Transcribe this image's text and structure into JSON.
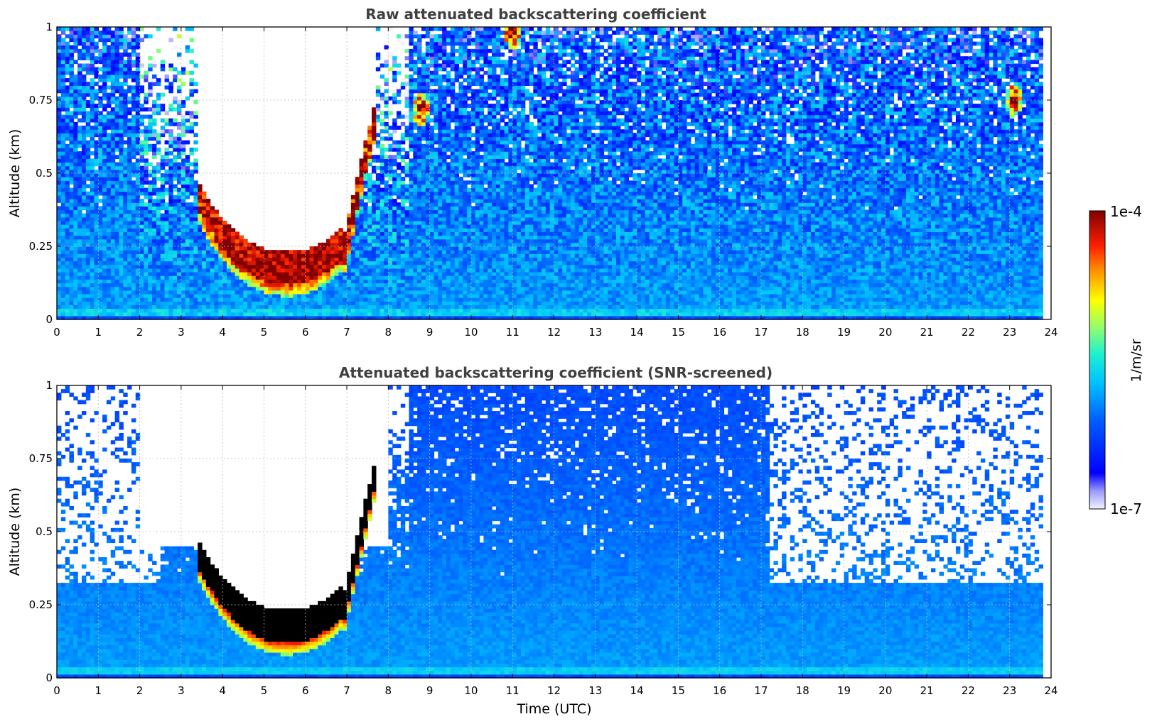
{
  "chart_data": [
    {
      "type": "heatmap",
      "title": "Raw attenuated backscattering coefficient",
      "xlabel": "",
      "ylabel": "Altitude (km)",
      "xlim": [
        0,
        24
      ],
      "ylim": [
        0,
        1
      ],
      "xticks": [
        "0",
        "1",
        "2",
        "3",
        "4",
        "5",
        "6",
        "7",
        "8",
        "9",
        "10",
        "11",
        "12",
        "13",
        "14",
        "15",
        "16",
        "17",
        "18",
        "19",
        "20",
        "21",
        "22",
        "23",
        "24"
      ],
      "yticks": [
        "0",
        "0.25",
        "0.5",
        "0.75",
        "1"
      ],
      "grid": true,
      "colorscale": "jet",
      "color_range": [
        1e-07,
        0.0001
      ],
      "features": {
        "cloud_layer": {
          "start_h": 3.4,
          "end_h": 7.7,
          "base_km_min": 0.12,
          "base_km_max": 0.38
        },
        "upper_features": [
          {
            "time_h": 8.8,
            "altitude_km": 0.72
          },
          {
            "time_h": 23.1,
            "altitude_km": 0.75
          },
          {
            "time_h": 11.0,
            "altitude_km": 0.98
          }
        ],
        "data_end_h": 23.8
      }
    },
    {
      "type": "heatmap",
      "title": "Attenuated backscattering coefficient (SNR-screened)",
      "xlabel": "Time (UTC)",
      "ylabel": "Altitude (km)",
      "xlim": [
        0,
        24
      ],
      "ylim": [
        0,
        1
      ],
      "xticks": [
        "0",
        "1",
        "2",
        "3",
        "4",
        "5",
        "6",
        "7",
        "8",
        "9",
        "10",
        "11",
        "12",
        "13",
        "14",
        "15",
        "16",
        "17",
        "18",
        "19",
        "20",
        "21",
        "22",
        "23",
        "24"
      ],
      "yticks": [
        "0",
        "0.25",
        "0.5",
        "0.75",
        "1"
      ],
      "grid": true,
      "colorscale": "jet",
      "color_range": [
        1e-07,
        0.0001
      ],
      "features": {
        "cloud_layer": {
          "start_h": 3.4,
          "end_h": 7.7,
          "base_km_min": 0.12,
          "base_km_max": 0.38
        },
        "screened_top_km": 0.32,
        "data_end_h": 23.8
      }
    }
  ],
  "colorbar": {
    "label": "1/m/sr",
    "max_label": "1e-4",
    "min_label": "1e-7"
  }
}
